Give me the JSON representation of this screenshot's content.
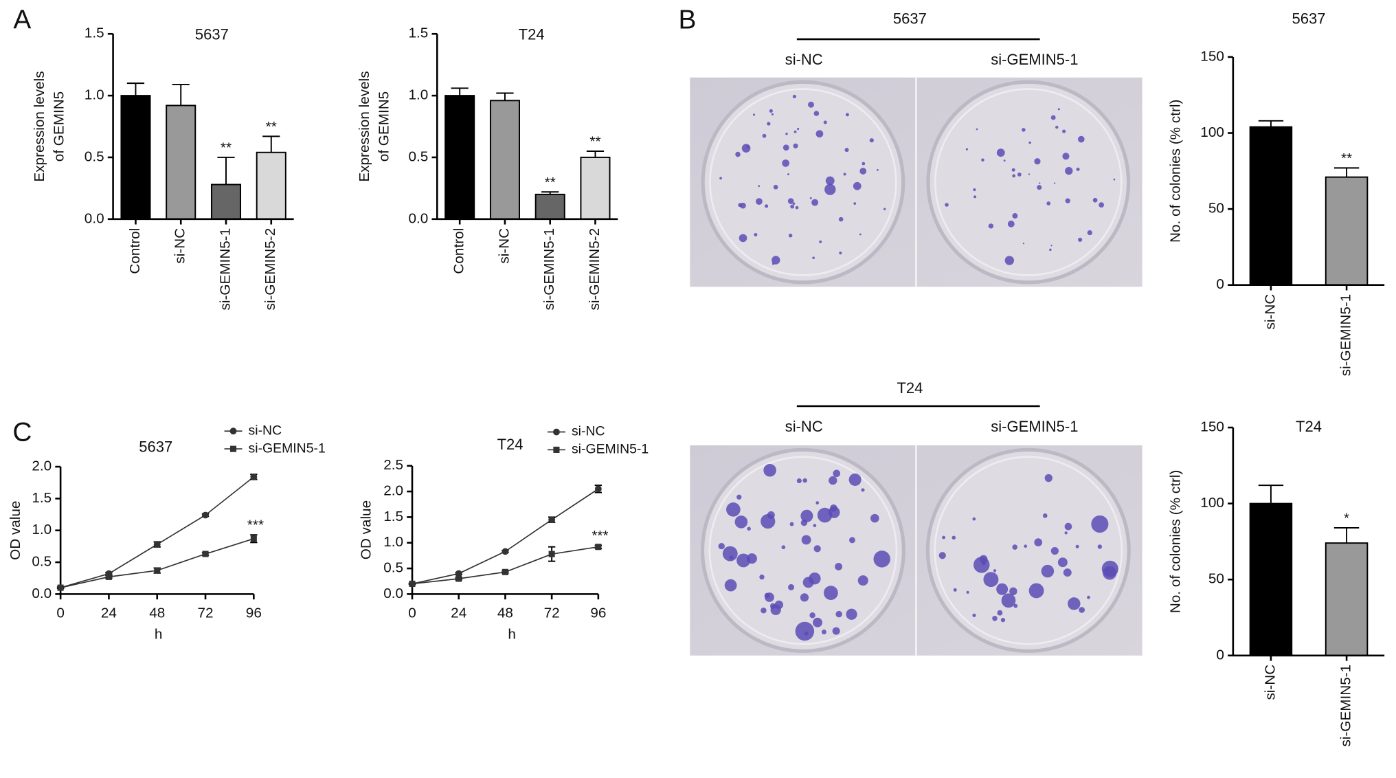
{
  "panels": {
    "labels": [
      "A",
      "B",
      "C"
    ]
  },
  "photos": [
    {
      "title": "5637",
      "left": "si-NC",
      "right": "si-GEMIN5-1"
    },
    {
      "title": "T24",
      "left": "si-NC",
      "right": "si-GEMIN5-1"
    }
  ],
  "chart_data": [
    {
      "type": "bar",
      "title": "5637",
      "ylabel": [
        "Expression levels",
        "of GEMIN5"
      ],
      "categories": [
        "Control",
        "si-NC",
        "si-GEMIN5-1",
        "si-GEMIN5-2"
      ],
      "values": [
        1.0,
        0.92,
        0.28,
        0.54
      ],
      "errors": [
        0.1,
        0.17,
        0.22,
        0.13
      ],
      "colors": [
        "#000000",
        "#999999",
        "#666666",
        "#d9d9d9"
      ],
      "significance": [
        null,
        null,
        "**",
        "**"
      ],
      "ylim": [
        0,
        1.5
      ],
      "yticks": [
        {
          "value": 0,
          "label": "0.0"
        },
        0.5,
        {
          "value": 1,
          "label": "1.0"
        },
        1.5
      ]
    },
    {
      "type": "bar",
      "title": "T24",
      "ylabel": [
        "Expression levels",
        "of GEMIN5"
      ],
      "categories": [
        "Control",
        "si-NC",
        "si-GEMIN5-1",
        "si-GEMIN5-2"
      ],
      "values": [
        1.0,
        0.96,
        0.2,
        0.5
      ],
      "errors": [
        0.06,
        0.06,
        0.02,
        0.05
      ],
      "colors": [
        "#000000",
        "#999999",
        "#666666",
        "#d9d9d9"
      ],
      "significance": [
        null,
        null,
        "**",
        "**"
      ],
      "ylim": [
        0,
        1.5
      ],
      "yticks": [
        {
          "value": 0,
          "label": "0.0"
        },
        0.5,
        {
          "value": 1,
          "label": "1.0"
        },
        1.5
      ]
    },
    {
      "type": "bar",
      "title": "5637",
      "ylabel": [
        "No. of colonies (% ctrl)"
      ],
      "categories": [
        "si-NC",
        "si-GEMIN5-1"
      ],
      "values": [
        104,
        71
      ],
      "errors": [
        4,
        6
      ],
      "colors": [
        "#000000",
        "#999999"
      ],
      "significance": [
        null,
        "**"
      ],
      "ylim": [
        0,
        150
      ],
      "yticks": [
        0,
        50,
        100,
        150
      ]
    },
    {
      "type": "bar",
      "title": "T24",
      "ylabel": [
        "No. of colonies (% ctrl)"
      ],
      "categories": [
        "si-NC",
        "si-GEMIN5-1"
      ],
      "values": [
        100,
        74
      ],
      "errors": [
        12,
        10
      ],
      "colors": [
        "#000000",
        "#999999"
      ],
      "significance": [
        null,
        "*"
      ],
      "ylim": [
        0,
        150
      ],
      "yticks": [
        0,
        50,
        100,
        150
      ]
    },
    {
      "type": "line",
      "title": "5637",
      "xlabel": "h",
      "ylabel": [
        "OD value"
      ],
      "x": [
        0,
        24,
        48,
        72,
        96
      ],
      "series": [
        {
          "name": "si-NC",
          "color": "#333333",
          "marker": "circle",
          "values": [
            0.1,
            0.32,
            0.78,
            1.24,
            1.84
          ],
          "errors": [
            0.01,
            0.02,
            0.04,
            0.02,
            0.04
          ],
          "significance": [
            null,
            null,
            null,
            null,
            null
          ]
        },
        {
          "name": "si-GEMIN5-1",
          "color": "#333333",
          "marker": "square",
          "values": [
            0.1,
            0.27,
            0.37,
            0.63,
            0.87
          ],
          "errors": [
            0.01,
            0.02,
            0.04,
            0.02,
            0.06
          ],
          "significance": [
            null,
            null,
            null,
            null,
            "***"
          ]
        }
      ],
      "xlim": [
        0,
        96
      ],
      "xticks": [
        0,
        24,
        48,
        72,
        96
      ],
      "ylim": [
        0,
        2
      ],
      "yticks": [
        {
          "value": 0,
          "label": "0.0"
        },
        0.5,
        {
          "value": 1,
          "label": "1.0"
        },
        1.5,
        {
          "value": 2,
          "label": "2.0"
        }
      ]
    },
    {
      "type": "line",
      "title": "T24",
      "xlabel": "h",
      "ylabel": [
        "OD value"
      ],
      "x": [
        0,
        24,
        48,
        72,
        96
      ],
      "series": [
        {
          "name": "si-NC",
          "color": "#333333",
          "marker": "circle",
          "values": [
            0.2,
            0.4,
            0.83,
            1.45,
            2.05
          ],
          "errors": [
            0.01,
            0.02,
            0.02,
            0.05,
            0.07
          ],
          "significance": [
            null,
            null,
            null,
            null,
            null
          ]
        },
        {
          "name": "si-GEMIN5-1",
          "color": "#333333",
          "marker": "square",
          "values": [
            0.2,
            0.3,
            0.43,
            0.78,
            0.92
          ],
          "errors": [
            0.01,
            0.02,
            0.02,
            0.14,
            0.03
          ],
          "significance": [
            null,
            null,
            null,
            null,
            "***"
          ]
        }
      ],
      "xlim": [
        0,
        96
      ],
      "xticks": [
        0,
        24,
        48,
        72,
        96
      ],
      "ylim": [
        0,
        2.5
      ],
      "yticks": [
        {
          "value": 0,
          "label": "0.0"
        },
        0.5,
        {
          "value": 1,
          "label": "1.0"
        },
        1.5,
        {
          "value": 2,
          "label": "2.0"
        },
        2.5
      ]
    }
  ]
}
